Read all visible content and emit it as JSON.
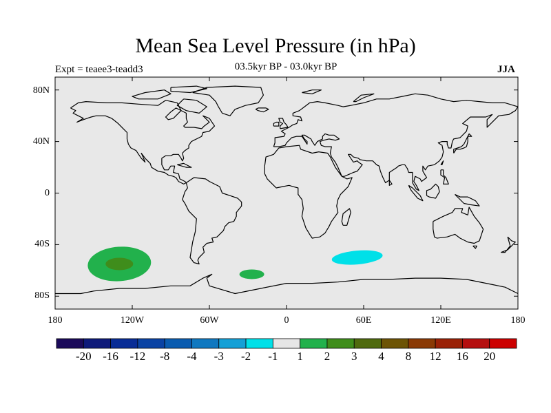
{
  "header": {
    "title": "Mean Sea Level Pressure (in hPa)",
    "experiment": "Expt = teaee3-teadd3",
    "period": "03.5kyr BP - 03.0kyr BP",
    "season": "JJA"
  },
  "map": {
    "land_color": "#e8e8e8",
    "coast_color": "#000000",
    "lat_ticks": [
      "80N",
      "40N",
      "0",
      "40S",
      "80S"
    ],
    "lon_ticks": [
      "180",
      "120W",
      "60W",
      "0",
      "60E",
      "120E",
      "180"
    ]
  },
  "anomalies": [
    {
      "label": "south-pacific-positive",
      "lon": -130,
      "lat": -55,
      "level": "2",
      "color": "#22b14c"
    },
    {
      "label": "south-pacific-core",
      "lon": -130,
      "lat": -55,
      "level": "3",
      "color": "#3f8d1b"
    },
    {
      "label": "south-atlantic-positive",
      "lon": -27,
      "lat": -63,
      "level": "2",
      "color": "#22b14c"
    },
    {
      "label": "indian-ocean-negative",
      "lon": 55,
      "lat": -50,
      "level": "-1",
      "color": "#00e0e8"
    }
  ],
  "colorbar": {
    "labels": [
      "-20",
      "-16",
      "-12",
      "-8",
      "-4",
      "-3",
      "-2",
      "-1",
      "1",
      "2",
      "3",
      "4",
      "8",
      "12",
      "16",
      "20"
    ],
    "colors": [
      "#1b0a5a",
      "#0e1a7a",
      "#082c96",
      "#0a43a4",
      "#0a5cb0",
      "#0f78c0",
      "#14a0d6",
      "#00e0e8",
      "#e6e6e6",
      "#22b14c",
      "#3f8d1b",
      "#4f6a0e",
      "#6d5405",
      "#8a3a05",
      "#9a2207",
      "#b50f0f",
      "#cc0000"
    ]
  }
}
